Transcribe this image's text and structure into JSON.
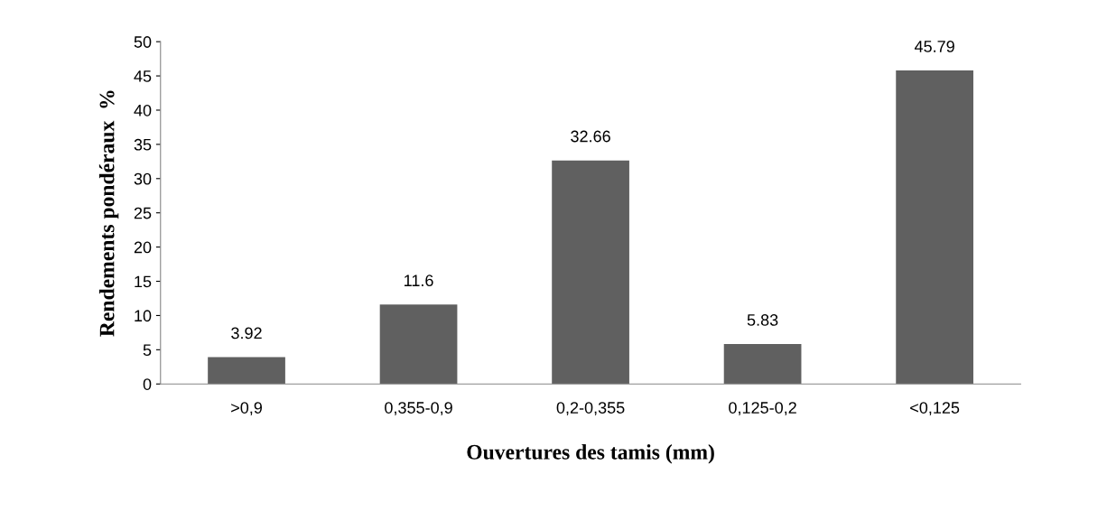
{
  "chart_data": {
    "type": "bar",
    "xlabel": "Ouvertures des tamis (mm)",
    "ylabel": "Rendements pondéraux  %",
    "categories": [
      ">0,9",
      "0,355-0,9",
      "0,2-0,355",
      "0,125-0,2",
      "<0,125"
    ],
    "values": [
      3.92,
      11.6,
      32.66,
      5.83,
      45.79
    ],
    "color": "#606060",
    "ylim": [
      0,
      50
    ],
    "yticks": [
      0,
      5,
      10,
      15,
      20,
      25,
      30,
      35,
      40,
      45,
      50
    ],
    "grid": false,
    "data_labels": true
  }
}
